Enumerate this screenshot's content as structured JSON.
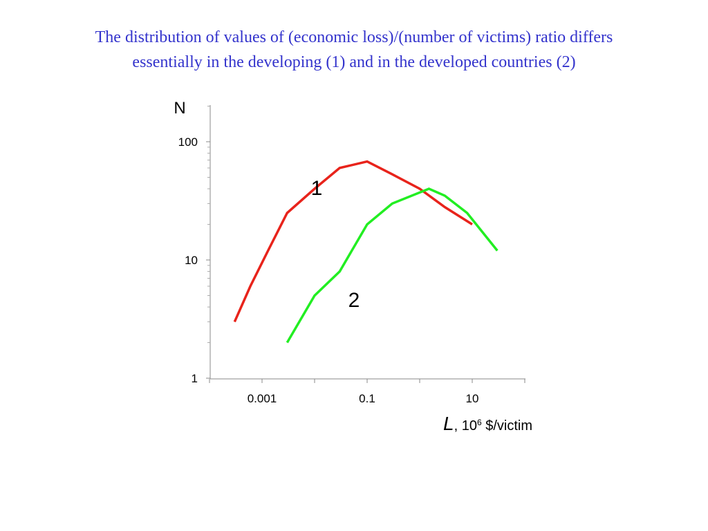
{
  "title": {
    "line1": "The distribution of values of  (economic loss)/(number of victims) ratio  differs",
    "line2": "essentially  in the developing (1)  and in the developed countries (2)"
  },
  "chart_data": {
    "type": "line",
    "ylabel": "N",
    "xlabel": {
      "symbol": "L",
      "rest_prefix": ", 10",
      "exponent": "6",
      "rest_suffix": " $/victim"
    },
    "x_scale": "log",
    "y_scale": "log",
    "xlim": [
      0.0001,
      1000
    ],
    "ylim": [
      1,
      200
    ],
    "x_ticks": [
      0.001,
      0.1,
      10
    ],
    "x_tick_labels": [
      "0.001",
      "0.1",
      "10"
    ],
    "y_ticks": [
      1,
      10,
      100
    ],
    "y_tick_labels": [
      "1",
      "10",
      "100"
    ],
    "grid": false,
    "series": [
      {
        "name": "1",
        "color": "#e8231b",
        "x": [
          0.0003,
          0.0006,
          0.0013,
          0.003,
          0.01,
          0.03,
          0.1,
          0.3,
          1,
          3,
          10
        ],
        "y": [
          3,
          6,
          12,
          25,
          40,
          60,
          68,
          53,
          40,
          28,
          20
        ]
      },
      {
        "name": "2",
        "color": "#22ee22",
        "x": [
          0.003,
          0.01,
          0.03,
          0.1,
          0.3,
          1.5,
          3,
          8,
          30
        ],
        "y": [
          2,
          5,
          8,
          20,
          30,
          40,
          35,
          25,
          12
        ]
      }
    ]
  }
}
